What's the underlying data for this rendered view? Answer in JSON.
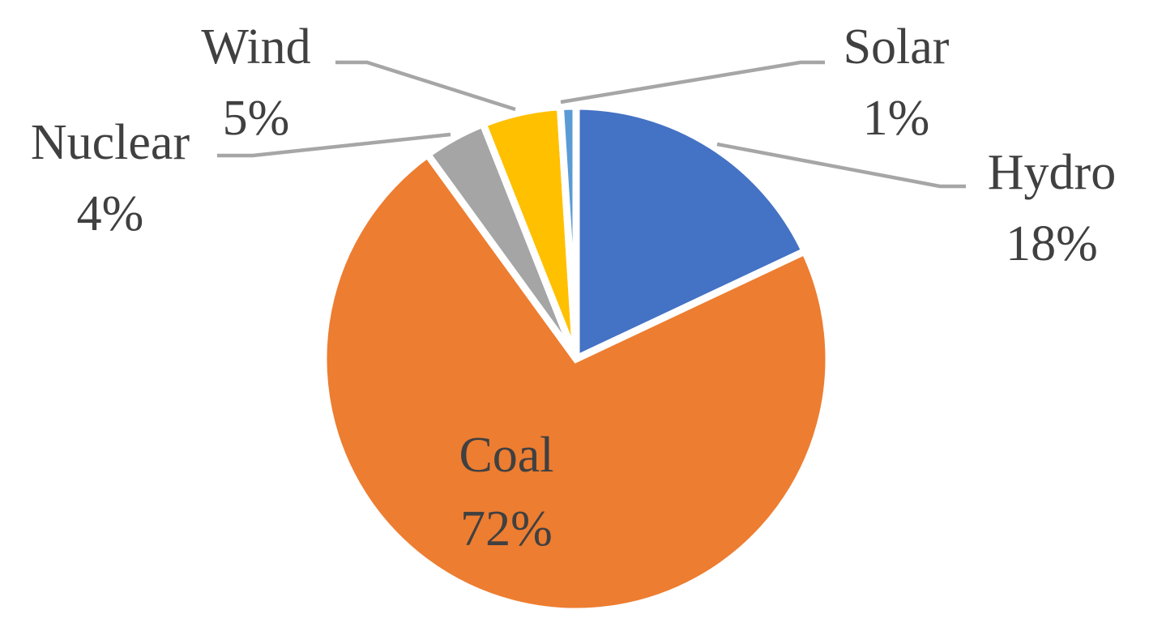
{
  "chart_data": {
    "type": "pie",
    "start_angle_deg": 0,
    "direction": "clockwise",
    "legend": "none",
    "slices": [
      {
        "label": "Hydro",
        "value": 18,
        "display": "18%",
        "color": "#4472C4"
      },
      {
        "label": "Coal",
        "value": 72,
        "display": "72%",
        "color": "#ED7D31"
      },
      {
        "label": "Nuclear",
        "value": 4,
        "display": "4%",
        "color": "#A5A5A5"
      },
      {
        "label": "Wind",
        "value": 5,
        "display": "5%",
        "color": "#FFC000"
      },
      {
        "label": "Solar",
        "value": 1,
        "display": "1%",
        "color": "#5B9BD5"
      }
    ]
  }
}
